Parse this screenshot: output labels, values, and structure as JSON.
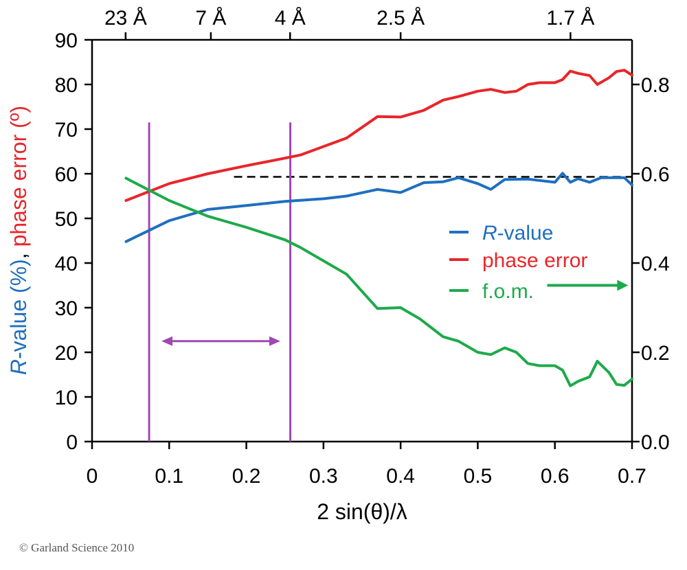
{
  "chart_data": {
    "type": "line",
    "x": {
      "label": "2 sin(θ)/λ",
      "lim": [
        0,
        0.7
      ],
      "ticks": [
        0,
        0.1,
        0.2,
        0.3,
        0.4,
        0.5,
        0.6,
        0.7
      ],
      "tick_labels": [
        "0",
        "0.1",
        "0.2",
        "0.3",
        "0.4",
        "0.5",
        "0.6",
        "0.7"
      ]
    },
    "y_left": {
      "label_parts": [
        {
          "text": "R",
          "italic": true,
          "color": "#1f6fbf"
        },
        {
          "text": "-value (%)",
          "italic": false,
          "color": "#1f6fbf"
        },
        {
          "text": ", ",
          "italic": false,
          "color": "#000000"
        },
        {
          "text": "phase error (º)",
          "italic": false,
          "color": "#e8262a"
        }
      ],
      "lim": [
        0,
        90
      ],
      "ticks": [
        0,
        10,
        20,
        30,
        40,
        50,
        60,
        70,
        80,
        90
      ],
      "tick_labels": [
        "0",
        "10",
        "20",
        "30",
        "40",
        "50",
        "60",
        "70",
        "80",
        "90"
      ]
    },
    "y_right": {
      "lim": [
        0,
        0.9
      ],
      "ticks": [
        0,
        0.2,
        0.4,
        0.6,
        0.8
      ],
      "tick_labels": [
        "0.0",
        "0.2",
        "0.4",
        "0.6",
        "0.8"
      ]
    },
    "top_axis": {
      "positions": [
        0.0435,
        0.154,
        0.2567,
        0.4,
        0.6202
      ],
      "labels": [
        "23 Å",
        "7 Å",
        "4 Å",
        "2.5 Å",
        "1.7 Å"
      ]
    },
    "series": [
      {
        "name": "R-value",
        "legend_label": "-value",
        "legend_italic_prefix": "R",
        "axis": "left",
        "color": "#1f6fbf",
        "points": [
          [
            0.044,
            44.8
          ],
          [
            0.1,
            49.5
          ],
          [
            0.15,
            52
          ],
          [
            0.2,
            52.9
          ],
          [
            0.25,
            53.8
          ],
          [
            0.3,
            54.4
          ],
          [
            0.33,
            55
          ],
          [
            0.37,
            56.5
          ],
          [
            0.4,
            55.8
          ],
          [
            0.43,
            58
          ],
          [
            0.455,
            58.2
          ],
          [
            0.475,
            59.1
          ],
          [
            0.5,
            57.8
          ],
          [
            0.517,
            56.5
          ],
          [
            0.535,
            58.7
          ],
          [
            0.565,
            58.8
          ],
          [
            0.6,
            58.1
          ],
          [
            0.61,
            60.1
          ],
          [
            0.62,
            58.1
          ],
          [
            0.63,
            58.9
          ],
          [
            0.645,
            58.1
          ],
          [
            0.66,
            59.1
          ],
          [
            0.69,
            59.1
          ],
          [
            0.7,
            57.5
          ]
        ]
      },
      {
        "name": "phase error",
        "legend_label": "phase error",
        "axis": "left",
        "color": "#e8262a",
        "points": [
          [
            0.044,
            54
          ],
          [
            0.1,
            57.8
          ],
          [
            0.15,
            60
          ],
          [
            0.2,
            61.8
          ],
          [
            0.25,
            63.5
          ],
          [
            0.27,
            64.2
          ],
          [
            0.33,
            68
          ],
          [
            0.37,
            72.8
          ],
          [
            0.4,
            72.7
          ],
          [
            0.43,
            74.2
          ],
          [
            0.455,
            76.5
          ],
          [
            0.475,
            77.3
          ],
          [
            0.5,
            78.5
          ],
          [
            0.517,
            78.9
          ],
          [
            0.535,
            78.2
          ],
          [
            0.55,
            78.5
          ],
          [
            0.565,
            80
          ],
          [
            0.58,
            80.4
          ],
          [
            0.6,
            80.4
          ],
          [
            0.61,
            81.1
          ],
          [
            0.62,
            83
          ],
          [
            0.63,
            82.5
          ],
          [
            0.645,
            82
          ],
          [
            0.655,
            80
          ],
          [
            0.67,
            81.5
          ],
          [
            0.68,
            82.9
          ],
          [
            0.69,
            83.2
          ],
          [
            0.7,
            82.1
          ]
        ]
      },
      {
        "name": "f.o.m.",
        "legend_label": "f.o.m.",
        "axis": "right",
        "color": "#1daa4a",
        "points": [
          [
            0.044,
            0.59
          ],
          [
            0.1,
            0.54
          ],
          [
            0.15,
            0.505
          ],
          [
            0.2,
            0.48
          ],
          [
            0.25,
            0.452
          ],
          [
            0.27,
            0.435
          ],
          [
            0.33,
            0.375
          ],
          [
            0.37,
            0.298
          ],
          [
            0.4,
            0.3
          ],
          [
            0.425,
            0.275
          ],
          [
            0.455,
            0.235
          ],
          [
            0.475,
            0.225
          ],
          [
            0.5,
            0.2
          ],
          [
            0.517,
            0.195
          ],
          [
            0.535,
            0.21
          ],
          [
            0.55,
            0.2
          ],
          [
            0.565,
            0.175
          ],
          [
            0.58,
            0.17
          ],
          [
            0.6,
            0.17
          ],
          [
            0.61,
            0.16
          ],
          [
            0.62,
            0.125
          ],
          [
            0.63,
            0.135
          ],
          [
            0.645,
            0.145
          ],
          [
            0.655,
            0.18
          ],
          [
            0.67,
            0.155
          ],
          [
            0.68,
            0.128
          ],
          [
            0.69,
            0.126
          ],
          [
            0.7,
            0.14
          ]
        ]
      }
    ],
    "annotations": {
      "dashed_line": {
        "x": [
          0.184,
          0.7
        ],
        "y": 59.3,
        "axis": "left",
        "color": "#000000"
      },
      "vertical_lines": {
        "x": [
          0.074,
          0.257
        ],
        "y_range": [
          0,
          71.5
        ],
        "color": "#a048b0"
      },
      "double_arrow": {
        "x": [
          0.09,
          0.244
        ],
        "y": 22.5,
        "color": "#a048b0"
      },
      "fom_arrow": {
        "x": [
          0.59,
          0.695
        ],
        "y": 0.35,
        "axis": "right"
      }
    },
    "legend": {
      "position": "right",
      "layout": "vertical"
    }
  },
  "copyright": "© Garland Science 2010"
}
